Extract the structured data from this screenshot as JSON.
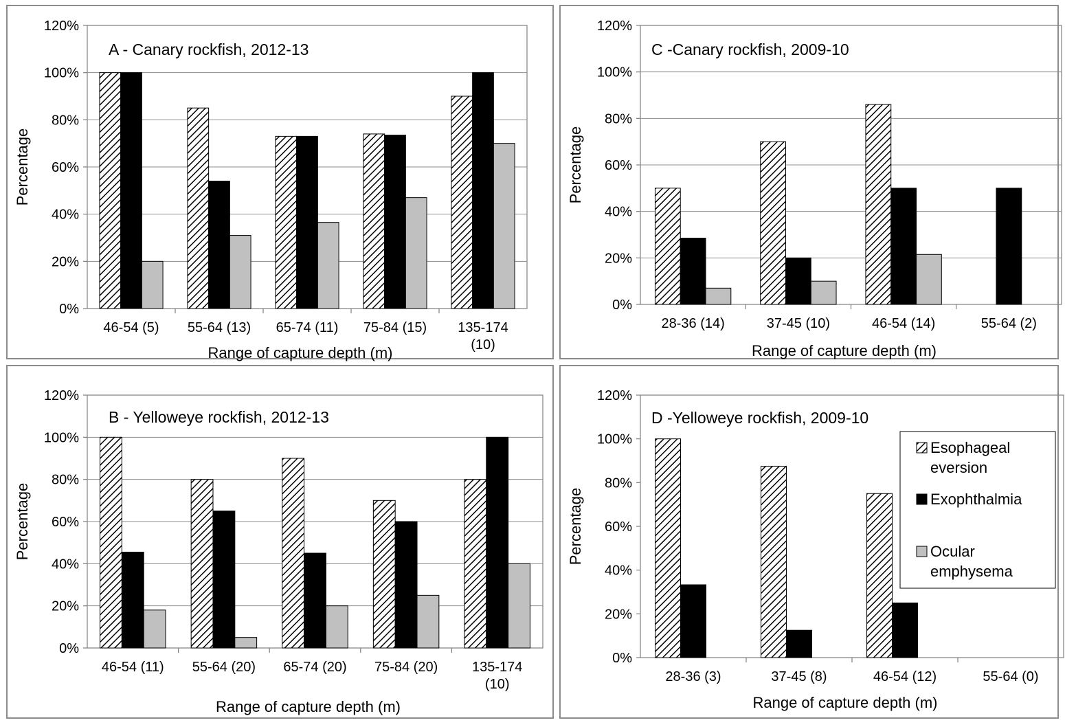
{
  "colors": {
    "panel_border": "#8c8c8c",
    "axis": "#7f7f7f",
    "grid": "#8c8c8c",
    "esophageal": "#000000",
    "exophthalmia": "#000000",
    "ocular": "#c0c0c0",
    "bar_outline": "#000000"
  },
  "chart_data": [
    {
      "id": "A",
      "type": "bar",
      "title": "A - Canary rockfish, 2012-13",
      "xlabel": "Range of capture depth (m)",
      "ylabel": "Percentage",
      "ylim": [
        0,
        120
      ],
      "yticks": [
        "0%",
        "20%",
        "40%",
        "60%",
        "80%",
        "100%",
        "120%"
      ],
      "grid": true,
      "categories": [
        [
          "46-54 (5)"
        ],
        [
          "55-64 (13)"
        ],
        [
          "65-74 (11)"
        ],
        [
          "75-84 (15)"
        ],
        [
          "135-174",
          "(10)"
        ]
      ],
      "series": [
        {
          "name": "Esophageal eversion",
          "pattern": "hatch",
          "values": [
            100,
            85,
            73,
            74,
            90
          ]
        },
        {
          "name": "Exophthalmia",
          "pattern": "solid-black",
          "values": [
            100,
            54,
            73,
            73.5,
            100
          ]
        },
        {
          "name": "Ocular emphysema",
          "pattern": "solid-gray",
          "values": [
            20,
            31,
            36.5,
            47,
            70
          ]
        }
      ]
    },
    {
      "id": "C",
      "type": "bar",
      "title": "C -Canary rockfish, 2009-10",
      "xlabel": "Range of capture depth (m)",
      "ylabel": "Percentage",
      "ylim": [
        0,
        120
      ],
      "yticks": [
        "0%",
        "20%",
        "40%",
        "60%",
        "80%",
        "100%",
        "120%"
      ],
      "grid": true,
      "categories": [
        [
          "28-36 (14)"
        ],
        [
          "37-45 (10)"
        ],
        [
          "46-54 (14)"
        ],
        [
          "55-64 (2)"
        ]
      ],
      "series": [
        {
          "name": "Esophageal eversion",
          "pattern": "hatch",
          "values": [
            50,
            70,
            86,
            0
          ]
        },
        {
          "name": "Exophthalmia",
          "pattern": "solid-black",
          "values": [
            28.5,
            20,
            50,
            50
          ]
        },
        {
          "name": "Ocular emphysema",
          "pattern": "solid-gray",
          "values": [
            7,
            10,
            21.5,
            0
          ]
        }
      ]
    },
    {
      "id": "B",
      "type": "bar",
      "title": "B - Yelloweye rockfish, 2012-13",
      "xlabel": "Range of capture depth (m)",
      "ylabel": "Percentage",
      "ylim": [
        0,
        120
      ],
      "yticks": [
        "0%",
        "20%",
        "40%",
        "60%",
        "80%",
        "100%",
        "120%"
      ],
      "grid": true,
      "categories": [
        [
          "46-54 (11)"
        ],
        [
          "55-64 (20)"
        ],
        [
          "65-74 (20)"
        ],
        [
          "75-84 (20)"
        ],
        [
          "135-174",
          "(10)"
        ]
      ],
      "series": [
        {
          "name": "Esophageal eversion",
          "pattern": "hatch",
          "values": [
            100,
            80,
            90,
            70,
            80
          ]
        },
        {
          "name": "Exophthalmia",
          "pattern": "solid-black",
          "values": [
            45.5,
            65,
            45,
            60,
            100
          ]
        },
        {
          "name": "Ocular emphysema",
          "pattern": "solid-gray",
          "values": [
            18,
            5,
            20,
            25,
            40
          ]
        }
      ]
    },
    {
      "id": "D",
      "type": "bar",
      "title": "D -Yelloweye rockfish, 2009-10",
      "xlabel": "Range of capture depth (m)",
      "ylabel": "Percentage",
      "ylim": [
        0,
        120
      ],
      "yticks": [
        "0%",
        "20%",
        "40%",
        "60%",
        "80%",
        "100%",
        "120%"
      ],
      "grid": false,
      "legend_position": "top-right",
      "legend": [
        {
          "label_lines": [
            "Esophageal",
            "eversion"
          ],
          "pattern": "hatch"
        },
        {
          "label_lines": [
            "Exophthalmia"
          ],
          "pattern": "solid-black"
        },
        {
          "label_lines": [
            "Ocular",
            "emphysema"
          ],
          "pattern": "solid-gray"
        }
      ],
      "categories": [
        [
          "28-36 (3)"
        ],
        [
          "37-45 (8)"
        ],
        [
          "46-54 (12)"
        ],
        [
          "55-64 (0)"
        ]
      ],
      "series": [
        {
          "name": "Esophageal eversion",
          "pattern": "hatch",
          "values": [
            100,
            87.5,
            75,
            0
          ]
        },
        {
          "name": "Exophthalmia",
          "pattern": "solid-black",
          "values": [
            33.3,
            12.5,
            25,
            0
          ]
        },
        {
          "name": "Ocular emphysema",
          "pattern": "solid-gray",
          "values": [
            0,
            0,
            0,
            0
          ]
        }
      ]
    }
  ]
}
